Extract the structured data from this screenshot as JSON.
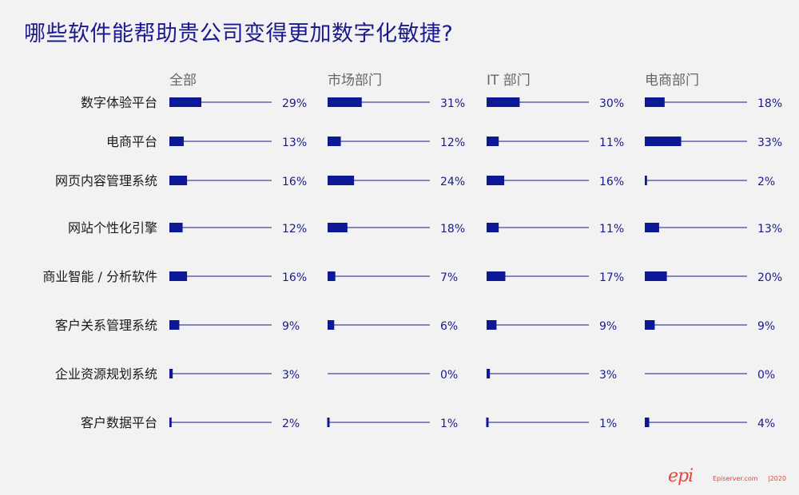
{
  "title": "哪些软件能帮助贵公司变得更加数字化敏捷?",
  "footer": {
    "logo": "epi",
    "url": "Episerver.com",
    "year": "|2020"
  },
  "colors": {
    "bar": "#0c1896",
    "line": "#1a1a8c",
    "label": "#1a1a8c",
    "header": "#666666",
    "accent": "#e2463c"
  },
  "chart_data": {
    "type": "bar",
    "orientation": "horizontal",
    "categories": [
      "数字体验平台",
      "电商平台",
      "网页内容管理系统",
      "网站个性化引擎",
      "商业智能 / 分析软件",
      "客户关系管理系统",
      "企业资源规划系统",
      "客户数据平台"
    ],
    "panels": [
      {
        "name": "全部",
        "values": [
          29,
          13,
          16,
          12,
          16,
          9,
          3,
          2
        ],
        "labels": [
          "29%",
          "13%",
          "16%",
          "12%",
          "16%",
          "9%",
          "3%",
          "2%"
        ]
      },
      {
        "name": "市场部门",
        "values": [
          31,
          12,
          24,
          18,
          7,
          6,
          0,
          1
        ],
        "labels": [
          "31%",
          "12%",
          "24%",
          "18%",
          "7%",
          "6%",
          "0%",
          "1%"
        ]
      },
      {
        "name": "IT 部门",
        "values": [
          30,
          11,
          16,
          11,
          17,
          9,
          3,
          1
        ],
        "labels": [
          "30%",
          "11%",
          "16%",
          "11%",
          "17%",
          "9%",
          "3%",
          "1%"
        ]
      },
      {
        "name": "电商部门",
        "values": [
          18,
          33,
          2,
          13,
          20,
          9,
          0,
          4
        ],
        "labels": [
          "18%",
          "33%",
          "2%",
          "13%",
          "20%",
          "9%",
          "0%",
          "4%"
        ]
      }
    ],
    "unit": "%"
  }
}
